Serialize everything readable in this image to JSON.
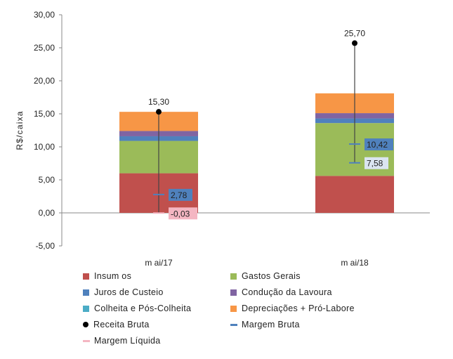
{
  "chart_data": {
    "type": "bar",
    "stacked": true,
    "categories": [
      "m ai/17",
      "m ai/18"
    ],
    "ylabel": "R$/caixa",
    "ylim": [
      -5,
      30
    ],
    "yticks": [
      "-5,00",
      "0,00",
      "5,00",
      "10,00",
      "15,00",
      "20,00",
      "25,00",
      "30,00"
    ],
    "series": [
      {
        "name": "Insum os",
        "color": "#c0504d",
        "values": [
          6.0,
          5.6
        ]
      },
      {
        "name": "Gastos Gerais",
        "color": "#9bbb59",
        "values": [
          4.9,
          8.0
        ]
      },
      {
        "name": "Juros de Custeio",
        "color": "#4f81bd",
        "values": [
          0.7,
          0.7
        ]
      },
      {
        "name": "Condução da Lavoura",
        "color": "#8064a2",
        "values": [
          0.8,
          0.8
        ]
      },
      {
        "name": "Colheita e Pós-Colheita",
        "color": "#4bacc6",
        "values": [
          0.0,
          0.0
        ]
      },
      {
        "name": "Depreciações + Pró-Labore",
        "color": "#f79646",
        "values": [
          2.9,
          3.0
        ]
      }
    ],
    "markers": [
      {
        "name": "Receita Bruta",
        "symbol": "dot",
        "color": "#000000",
        "values": [
          15.3,
          25.7
        ],
        "labels": [
          "15,30",
          "25,70"
        ]
      },
      {
        "name": "Margem Bruta",
        "symbol": "dash",
        "color": "#4f81bd",
        "values": [
          2.78,
          10.42
        ],
        "labels": [
          "2,78",
          "10,42"
        ],
        "label_bg": "#4f81bd"
      },
      {
        "name": "Margem Líquida",
        "symbol": "dash",
        "color": "#f4b6c2",
        "values": [
          -0.03,
          7.58
        ],
        "labels": [
          "-0,03",
          "7,58"
        ],
        "label_bg": [
          "#f4b6c2",
          "#dbe5f1"
        ]
      }
    ]
  }
}
